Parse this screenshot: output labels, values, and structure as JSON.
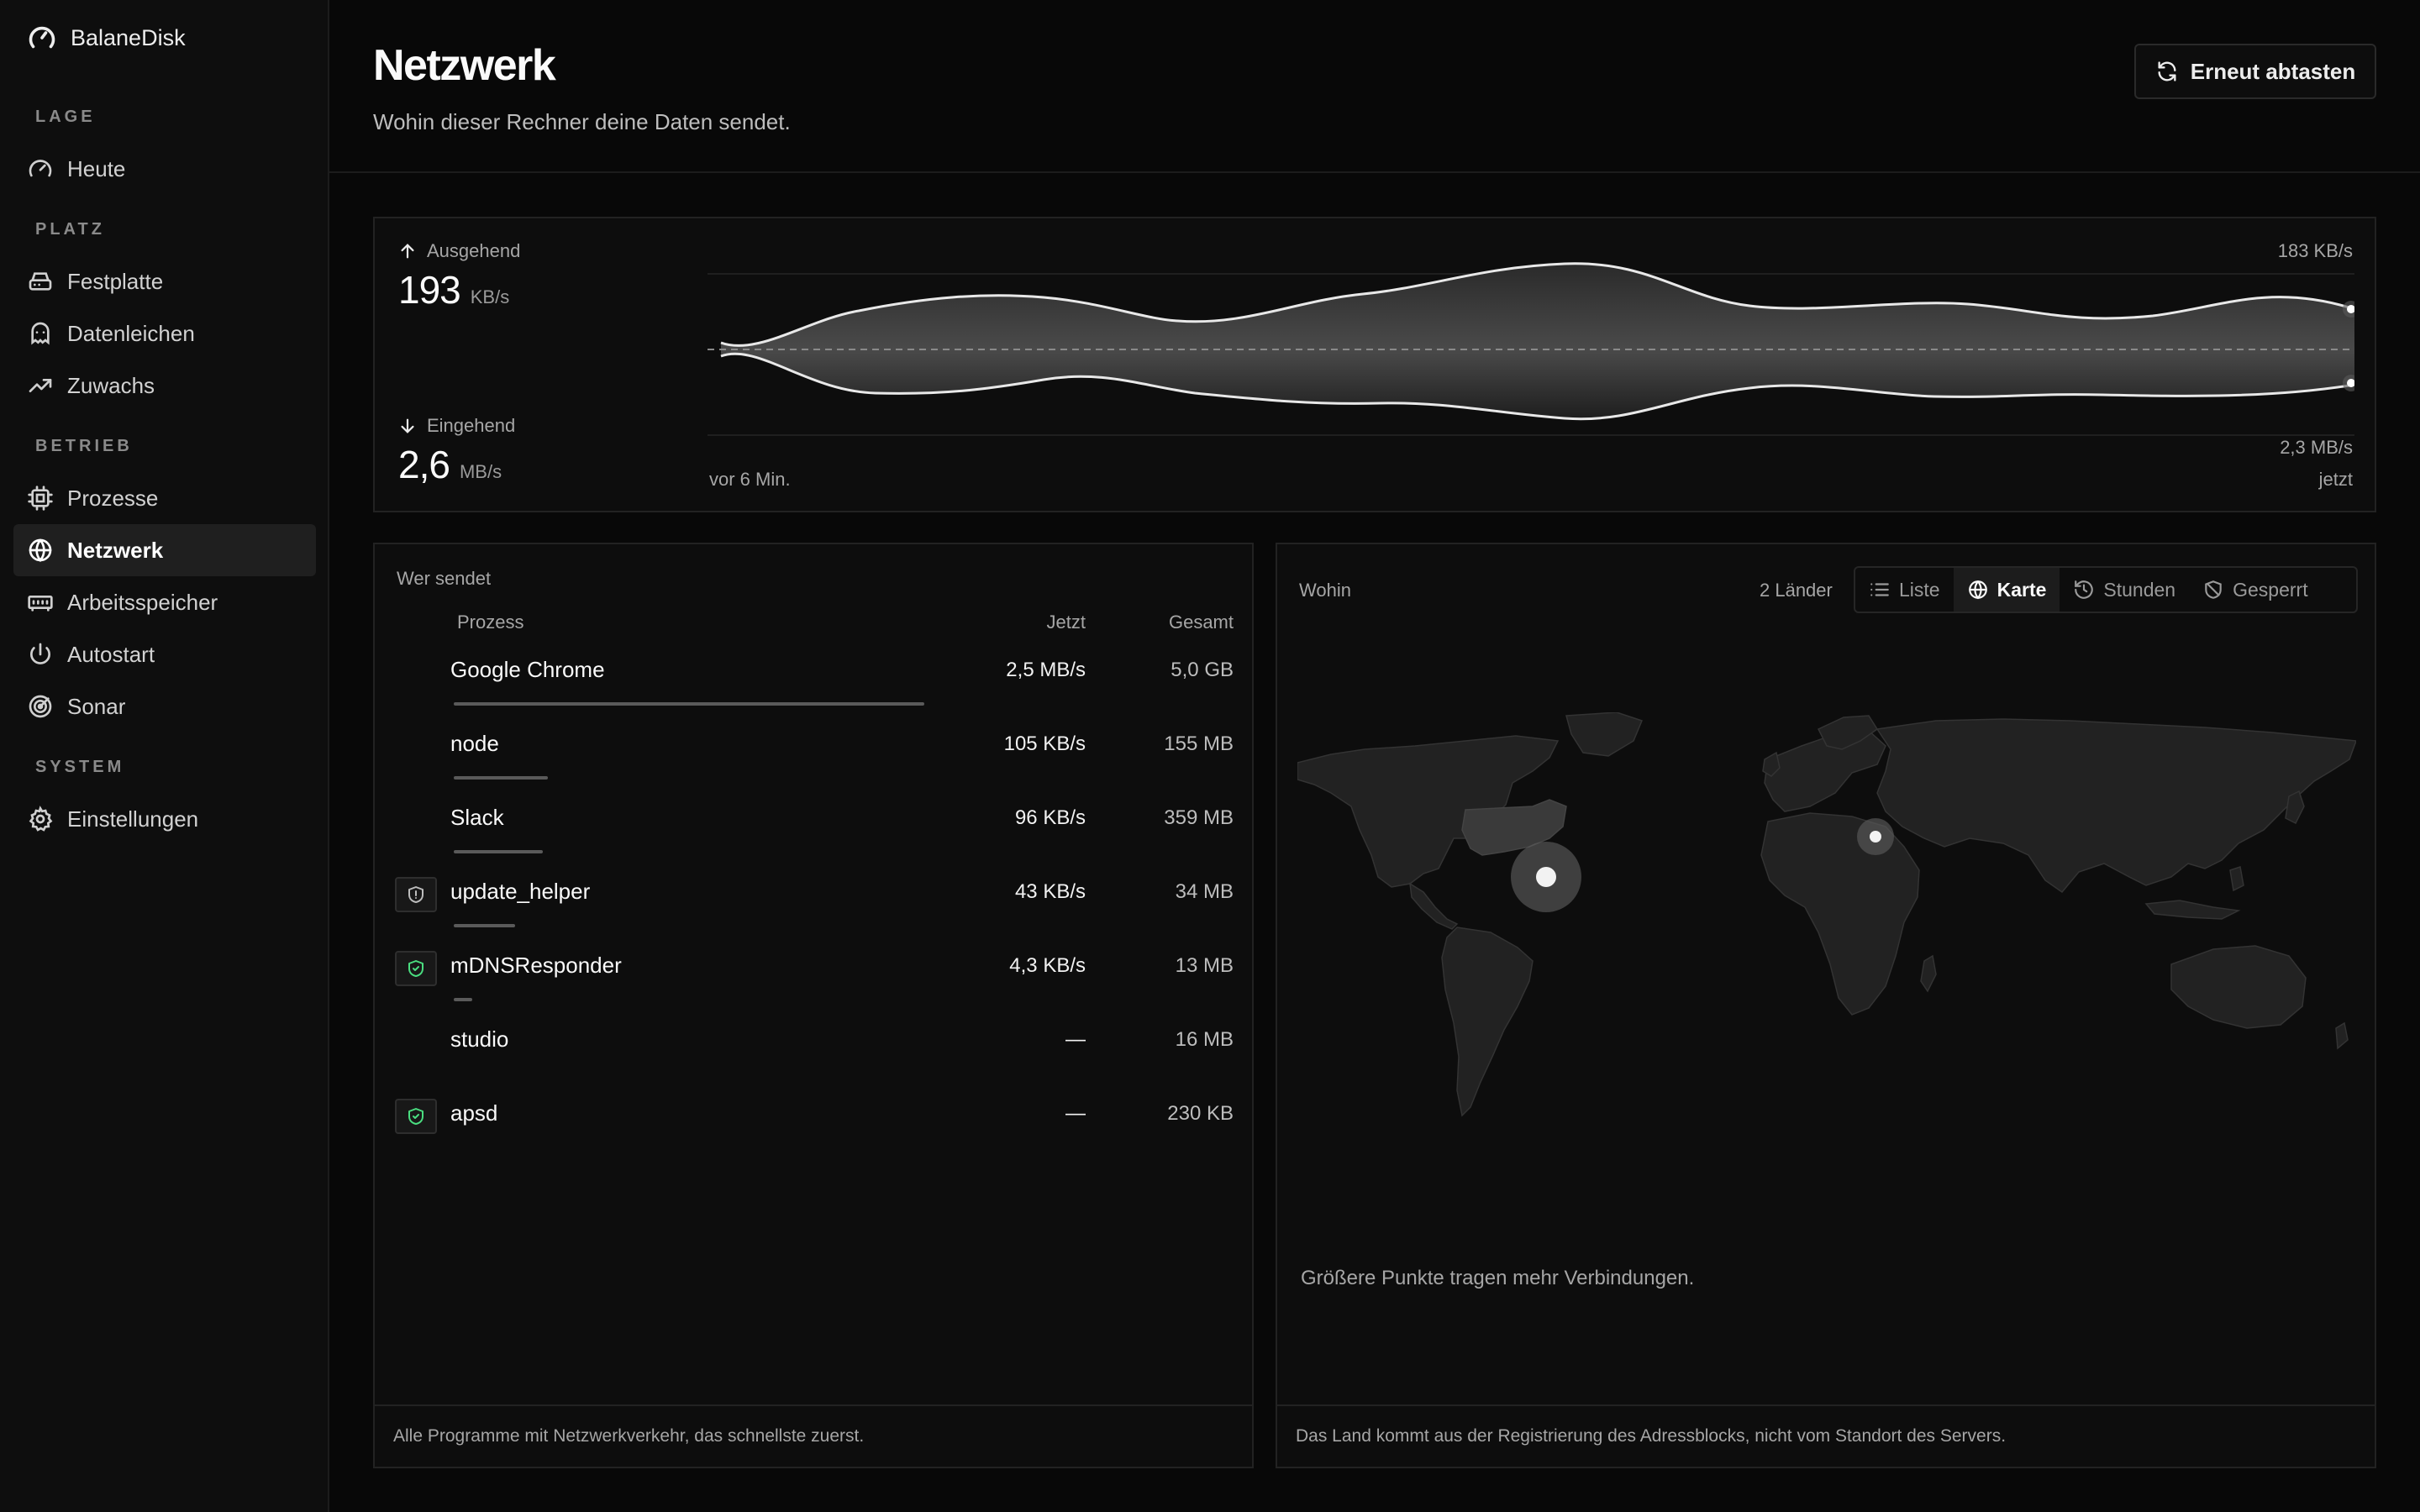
{
  "app": {
    "name": "BalaneDisk"
  },
  "sidebar": {
    "sections": {
      "lage": "LAGE",
      "platz": "PLATZ",
      "betrieb": "BETRIEB",
      "system": "SYSTEM"
    },
    "items": [
      {
        "label": "Heute",
        "icon": "gauge-icon"
      },
      {
        "label": "Festplatte",
        "icon": "hard-drive-icon"
      },
      {
        "label": "Datenleichen",
        "icon": "ghost-icon"
      },
      {
        "label": "Zuwachs",
        "icon": "trending-up-icon"
      },
      {
        "label": "Prozesse",
        "icon": "cpu-icon"
      },
      {
        "label": "Netzwerk",
        "icon": "globe-icon",
        "active": true
      },
      {
        "label": "Arbeitsspeicher",
        "icon": "memory-icon"
      },
      {
        "label": "Autostart",
        "icon": "power-icon"
      },
      {
        "label": "Sonar",
        "icon": "radar-icon"
      },
      {
        "label": "Einstellungen",
        "icon": "gear-icon"
      }
    ]
  },
  "header": {
    "title": "Netzwerk",
    "subtitle": "Wohin dieser Rechner deine Daten sendet.",
    "rescan_label": "Erneut abtasten"
  },
  "traffic": {
    "outgoing_label": "Ausgehend",
    "outgoing_value": "193",
    "outgoing_unit": "KB/s",
    "incoming_label": "Eingehend",
    "incoming_value": "2,6",
    "incoming_unit": "MB/s",
    "peak_out": "183 KB/s",
    "peak_in": "2,3 MB/s",
    "time_start": "vor 6 Min.",
    "time_end": "jetzt"
  },
  "processes": {
    "title": "Wer sendet",
    "columns": {
      "name": "Prozess",
      "now": "Jetzt",
      "total": "Gesamt"
    },
    "rows": [
      {
        "name": "Google Chrome",
        "now": "2,5 MB/s",
        "total": "5,0 GB",
        "share": 1.0,
        "badge": ""
      },
      {
        "name": "node",
        "now": "105 KB/s",
        "total": "155 MB",
        "share": 0.2,
        "badge": ""
      },
      {
        "name": "Slack",
        "now": "96 KB/s",
        "total": "359 MB",
        "share": 0.19,
        "badge": ""
      },
      {
        "name": "update_helper",
        "now": "43 KB/s",
        "total": "34 MB",
        "share": 0.13,
        "badge": "shield-icon"
      },
      {
        "name": "mDNSResponder",
        "now": "4,3 KB/s",
        "total": "13 MB",
        "share": 0.04,
        "badge": "shield-check-icon"
      },
      {
        "name": "studio",
        "now": "—",
        "total": "16 MB",
        "share": 0,
        "badge": ""
      },
      {
        "name": "apsd",
        "now": "—",
        "total": "230 KB",
        "share": 0,
        "badge": "shield-check-icon"
      }
    ],
    "footer": "Alle Programme mit Netzwerkverkehr, das schnellste zuerst."
  },
  "destinations": {
    "title": "Wohin",
    "countries": "2 Länder",
    "tabs": [
      {
        "label": "Liste",
        "icon": "list-icon"
      },
      {
        "label": "Karte",
        "icon": "globe-icon",
        "active": true
      },
      {
        "label": "Stunden",
        "icon": "history-icon"
      },
      {
        "label": "Gesperrt",
        "icon": "blocked-shield-icon"
      }
    ],
    "legend": "Größere Punkte tragen mehr Verbindungen.",
    "footer": "Das Land kommt aus der Registrierung des Adressblocks, nicht vom Standort des Servers."
  },
  "colors": {
    "background": "#080808",
    "panel": "#0d0d0d",
    "accent_green": "#4ade80",
    "text": "#ededed",
    "muted": "#a6a6a6"
  }
}
